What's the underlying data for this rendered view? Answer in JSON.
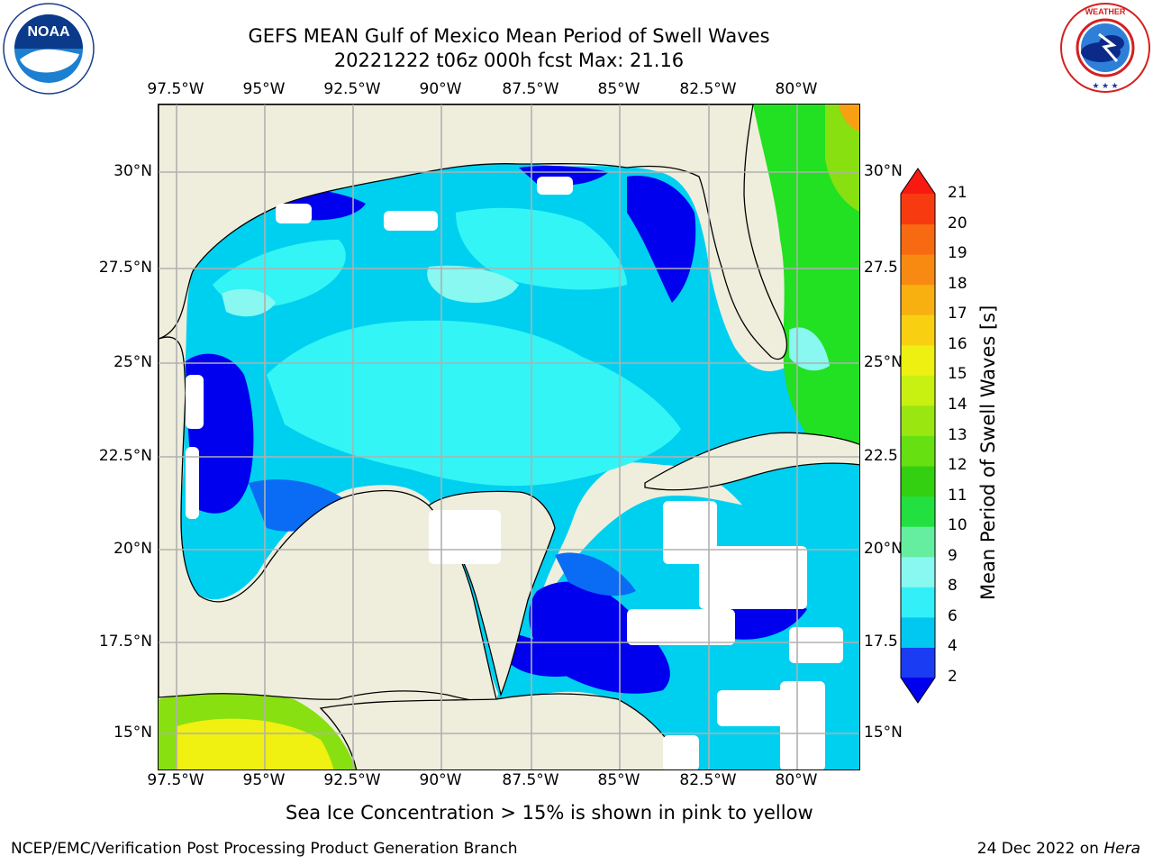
{
  "header": {
    "title_line1": "GEFS MEAN Gulf of Mexico Mean Period of Swell Waves",
    "title_line2": "20221222 t06z 000h fcst   Max: 21.16"
  },
  "logos": {
    "left_text": "NOAA",
    "left_ring_text": "NATIONAL OCEANIC AND ATMOSPHERIC ADMINISTRATION · U.S. DEPARTMENT OF COMMERCE",
    "right_ring_text": "NATIONAL WEATHER SERVICE"
  },
  "map": {
    "lon_labels": [
      "97.5°W",
      "95°W",
      "92.5°W",
      "90°W",
      "87.5°W",
      "85°W",
      "82.5°W",
      "80°W"
    ],
    "lat_labels_left": [
      "30°N",
      "27.5°N",
      "25°N",
      "22.5°N",
      "20°N",
      "17.5°N",
      "15°N"
    ],
    "lat_labels_right": [
      "30°N",
      "27.5",
      "25°N",
      "22.5",
      "20°N",
      "17.5",
      "15°N"
    ],
    "colors": {
      "land": "#efeedd",
      "grid": "#b0b0b0",
      "c2": "#0000ee",
      "c4": "#0a6cf5",
      "c6": "#00d0f0",
      "c8": "#33f5f5",
      "c9": "#88f8f0",
      "c10": "#22e080",
      "c11": "#22e022",
      "c12": "#55e011",
      "c13": "#88e011",
      "c14": "#c0f011",
      "c15": "#f0f011"
    }
  },
  "colorbar": {
    "label": "Mean Period of Swell Waves [s]",
    "ticks": [
      "2",
      "4",
      "6",
      "8",
      "9",
      "10",
      "11",
      "12",
      "13",
      "14",
      "15",
      "16",
      "17",
      "18",
      "19",
      "20",
      "21"
    ],
    "colors": [
      "#1a3cf2",
      "#00c8f0",
      "#33f0f8",
      "#88f8f0",
      "#66eea0",
      "#22e040",
      "#33d011",
      "#66e011",
      "#99e611",
      "#c8f011",
      "#eef011",
      "#f8d011",
      "#f8b011",
      "#f88a11",
      "#f86a11",
      "#f83a11",
      "#f81a11"
    ]
  },
  "caption": "Sea Ice Concentration > 15% is shown in pink to yellow",
  "footer": {
    "left": "NCEP/EMC/Verification Post Processing Product Generation Branch",
    "date": "24 Dec 2022 on",
    "host": "Hera"
  }
}
